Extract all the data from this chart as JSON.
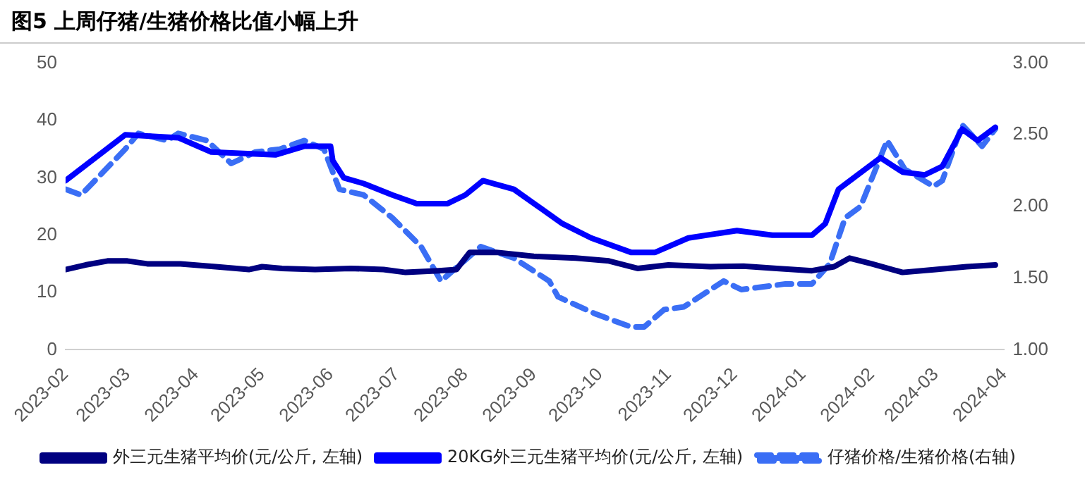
{
  "chart_data": {
    "type": "line",
    "title": "图5  上周仔猪/生猪价格比值小幅上升",
    "xlim": [
      "2023-02-01",
      "2024-04-01"
    ],
    "xticks": [
      "2023-02",
      "2023-03",
      "2023-04",
      "2023-05",
      "2023-06",
      "2023-07",
      "2023-08",
      "2023-09",
      "2023-10",
      "2023-11",
      "2023-12",
      "2024-01",
      "2024-02",
      "2024-03",
      "2024-04"
    ],
    "ylim": [
      0,
      50
    ],
    "yticks": [
      0,
      10,
      20,
      30,
      40,
      50
    ],
    "y2lim": [
      1,
      3
    ],
    "y2ticks": [
      {
        "value": 1,
        "label": "1.00"
      },
      {
        "value": 1.5,
        "label": "1.50"
      },
      {
        "value": 2,
        "label": "2.00"
      },
      {
        "value": 2.5,
        "label": "2.50"
      },
      {
        "value": 3,
        "label": "3.00"
      }
    ],
    "grid": false,
    "legend": "bottom",
    "marker": "none",
    "series": [
      {
        "name": "外三元生猪平均价(元/公斤, 左轴)",
        "color": "#000080",
        "line_style": "solid",
        "x": [
          "2023-02-01",
          "2023-02-10",
          "2023-02-20",
          "2023-03-01",
          "2023-03-10",
          "2023-03-25",
          "2023-04-10",
          "2023-04-25",
          "2023-05-01",
          "2023-05-10",
          "2023-05-25",
          "2023-06-10",
          "2023-06-25",
          "2023-07-05",
          "2023-07-20",
          "2023-07-28",
          "2023-08-03",
          "2023-08-15",
          "2023-09-01",
          "2023-09-20",
          "2023-10-05",
          "2023-10-18",
          "2023-11-01",
          "2023-11-20",
          "2023-12-05",
          "2023-12-20",
          "2024-01-05",
          "2024-01-15",
          "2024-01-22",
          "2024-02-01",
          "2024-02-15",
          "2024-03-01",
          "2024-03-15",
          "2024-03-28"
        ],
        "values": [
          14,
          14.8,
          15.5,
          15.5,
          15,
          15,
          14.5,
          14,
          14.5,
          14.2,
          14,
          14.2,
          14,
          13.5,
          13.8,
          14,
          17,
          17,
          16.3,
          16,
          15.5,
          14.2,
          14.8,
          14.5,
          14.6,
          14.2,
          13.8,
          14.5,
          16,
          15,
          13.5,
          14,
          14.5,
          14.8
        ]
      },
      {
        "name": "20KG外三元生猪平均价(元/公斤, 左轴)",
        "color": "#0000ff",
        "line_style": "solid",
        "x": [
          "2023-02-01",
          "2023-02-28",
          "2023-03-24",
          "2023-03-30",
          "2023-04-08",
          "2023-05-07",
          "2023-05-20",
          "2023-06-01",
          "2023-06-02",
          "2023-06-07",
          "2023-06-16",
          "2023-06-29",
          "2023-07-10",
          "2023-07-24",
          "2023-08-01",
          "2023-08-09",
          "2023-08-23",
          "2023-09-14",
          "2023-09-27",
          "2023-10-15",
          "2023-10-26",
          "2023-11-10",
          "2023-12-02",
          "2023-12-18",
          "2024-01-05",
          "2024-01-11",
          "2024-01-17",
          "2024-02-05",
          "2024-02-15",
          "2024-02-25",
          "2024-03-04",
          "2024-03-13",
          "2024-03-20",
          "2024-03-28"
        ],
        "values": [
          29.5,
          37.5,
          37,
          36,
          34.5,
          34,
          35.5,
          35.5,
          33,
          30,
          29,
          27,
          25.5,
          25.5,
          27,
          29.5,
          28,
          22,
          19.5,
          17,
          17,
          19.5,
          20.8,
          20,
          20,
          22,
          28,
          33.5,
          31,
          30.5,
          32,
          38.5,
          36.5,
          38.8
        ]
      },
      {
        "name": "仔猪价格/生猪价格(右轴)",
        "color": "#3a6ef5",
        "line_style": "dashed",
        "axis": "y2",
        "x": [
          "2023-02-01",
          "2023-02-08",
          "2023-02-28",
          "2023-03-06",
          "2023-03-19",
          "2023-03-24",
          "2023-04-06",
          "2023-04-17",
          "2023-04-28",
          "2023-05-09",
          "2023-05-20",
          "2023-05-29",
          "2023-06-05",
          "2023-06-16",
          "2023-06-29",
          "2023-07-12",
          "2023-07-21",
          "2023-08-08",
          "2023-08-23",
          "2023-09-08",
          "2023-09-12",
          "2023-09-29",
          "2023-10-15",
          "2023-10-21",
          "2023-10-30",
          "2023-11-08",
          "2023-11-26",
          "2023-12-04",
          "2023-12-24",
          "2024-01-05",
          "2024-01-13",
          "2024-01-20",
          "2024-01-27",
          "2024-02-08",
          "2024-02-16",
          "2024-02-29",
          "2024-03-04",
          "2024-03-13",
          "2024-03-22",
          "2024-03-28"
        ],
        "values": [
          2.12,
          2.08,
          2.4,
          2.51,
          2.46,
          2.51,
          2.46,
          2.3,
          2.38,
          2.4,
          2.46,
          2.4,
          2.12,
          2.08,
          1.92,
          1.72,
          1.48,
          1.72,
          1.64,
          1.48,
          1.37,
          1.25,
          1.16,
          1.16,
          1.28,
          1.3,
          1.48,
          1.42,
          1.46,
          1.46,
          1.6,
          1.92,
          2,
          2.46,
          2.26,
          2.14,
          2.18,
          2.57,
          2.42,
          2.54
        ]
      }
    ]
  }
}
